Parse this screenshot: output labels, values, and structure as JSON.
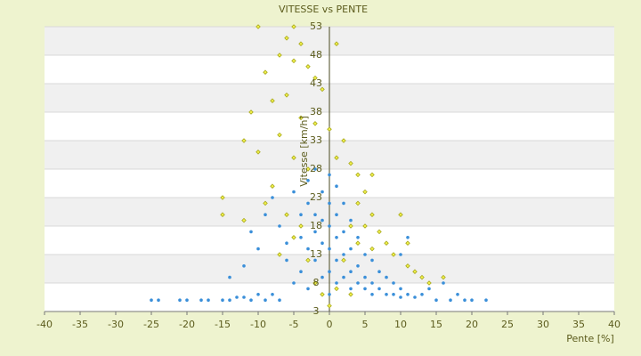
{
  "chart_data": {
    "type": "scatter",
    "title": "VITESSE vs PENTE",
    "x_label": "Pente [%]",
    "y_label": "Vitesse [km/h]",
    "xlim": [
      -40,
      40
    ],
    "xticks": [
      -40,
      -35,
      -30,
      -25,
      -20,
      -15,
      -10,
      -5,
      0,
      5,
      10,
      15,
      20,
      25,
      30,
      35,
      40
    ],
    "ylim": [
      3,
      53
    ],
    "yticks": [
      3,
      8,
      13,
      18,
      23,
      28,
      33,
      38,
      43,
      48,
      53
    ],
    "grid": true,
    "series": [
      {
        "color": "#a8a81e",
        "marker": "diamond",
        "x": [
          -10,
          -5,
          -6,
          -4,
          -7,
          -5,
          -3,
          -9,
          -2,
          1,
          -1,
          -6,
          -8,
          -11,
          -4,
          -2,
          -12,
          -7,
          0,
          2,
          -10,
          -5,
          1,
          3,
          4,
          6,
          -3,
          -15,
          -15,
          -12,
          -9,
          -8,
          -6,
          -5,
          -3,
          -2,
          -1,
          0,
          1,
          2,
          3,
          4,
          5,
          6,
          7,
          8,
          9,
          10,
          11,
          11,
          12,
          13,
          14,
          16,
          3,
          6,
          5,
          4,
          -4,
          -7
        ],
        "values": [
          53,
          53,
          51,
          50,
          48,
          47,
          46,
          45,
          44,
          50,
          42,
          41,
          40,
          38,
          37,
          36,
          33,
          34,
          35,
          33,
          31,
          30,
          30,
          29,
          27,
          27,
          28,
          23,
          20,
          19,
          22,
          25,
          20,
          16,
          12,
          8,
          6,
          4,
          7,
          12,
          18,
          22,
          24,
          20,
          17,
          15,
          13,
          20,
          15,
          11,
          10,
          9,
          8,
          9,
          6,
          14,
          18,
          15,
          18,
          13
        ]
      },
      {
        "color": "#3a8fd9",
        "marker": "circle",
        "x": [
          -25,
          -24,
          -21,
          -20,
          -18,
          -17,
          -15,
          -14,
          -13,
          -12,
          -11,
          -10,
          -9,
          -8,
          -7,
          -14,
          -12,
          -10,
          -11,
          -9,
          -8,
          -7,
          -6,
          -6,
          -5,
          -5,
          -4,
          -4,
          -4,
          -3,
          -3,
          -3,
          -3,
          -2,
          -2,
          -2,
          -2,
          -1,
          -1,
          -1,
          -1,
          0,
          0,
          0,
          0,
          0,
          0,
          1,
          1,
          1,
          1,
          1,
          2,
          2,
          2,
          2,
          3,
          3,
          3,
          3,
          4,
          4,
          4,
          5,
          5,
          5,
          6,
          6,
          6,
          7,
          7,
          8,
          8,
          9,
          9,
          10,
          10,
          11,
          12,
          13,
          14,
          15,
          16,
          17,
          18,
          19,
          20,
          22,
          10,
          11
        ],
        "values": [
          5,
          5,
          5,
          5,
          5,
          5,
          5,
          5,
          5.5,
          5.5,
          5,
          6,
          5,
          6,
          5,
          9,
          11,
          14,
          17,
          20,
          23,
          18,
          15,
          12,
          8,
          24,
          20,
          16,
          10,
          26,
          22,
          14,
          7,
          28,
          20,
          17,
          12,
          24,
          19,
          15,
          9,
          27,
          22,
          18,
          14,
          10,
          6,
          25,
          20,
          16,
          12,
          8,
          22,
          17,
          13,
          9,
          19,
          14,
          10,
          7,
          16,
          11,
          8,
          13,
          9,
          7,
          12,
          8,
          6,
          10,
          7,
          9,
          6,
          8,
          6,
          7,
          5.5,
          6,
          5.5,
          6,
          7,
          5,
          8,
          5,
          6,
          5,
          5,
          5,
          13,
          16
        ]
      }
    ]
  }
}
